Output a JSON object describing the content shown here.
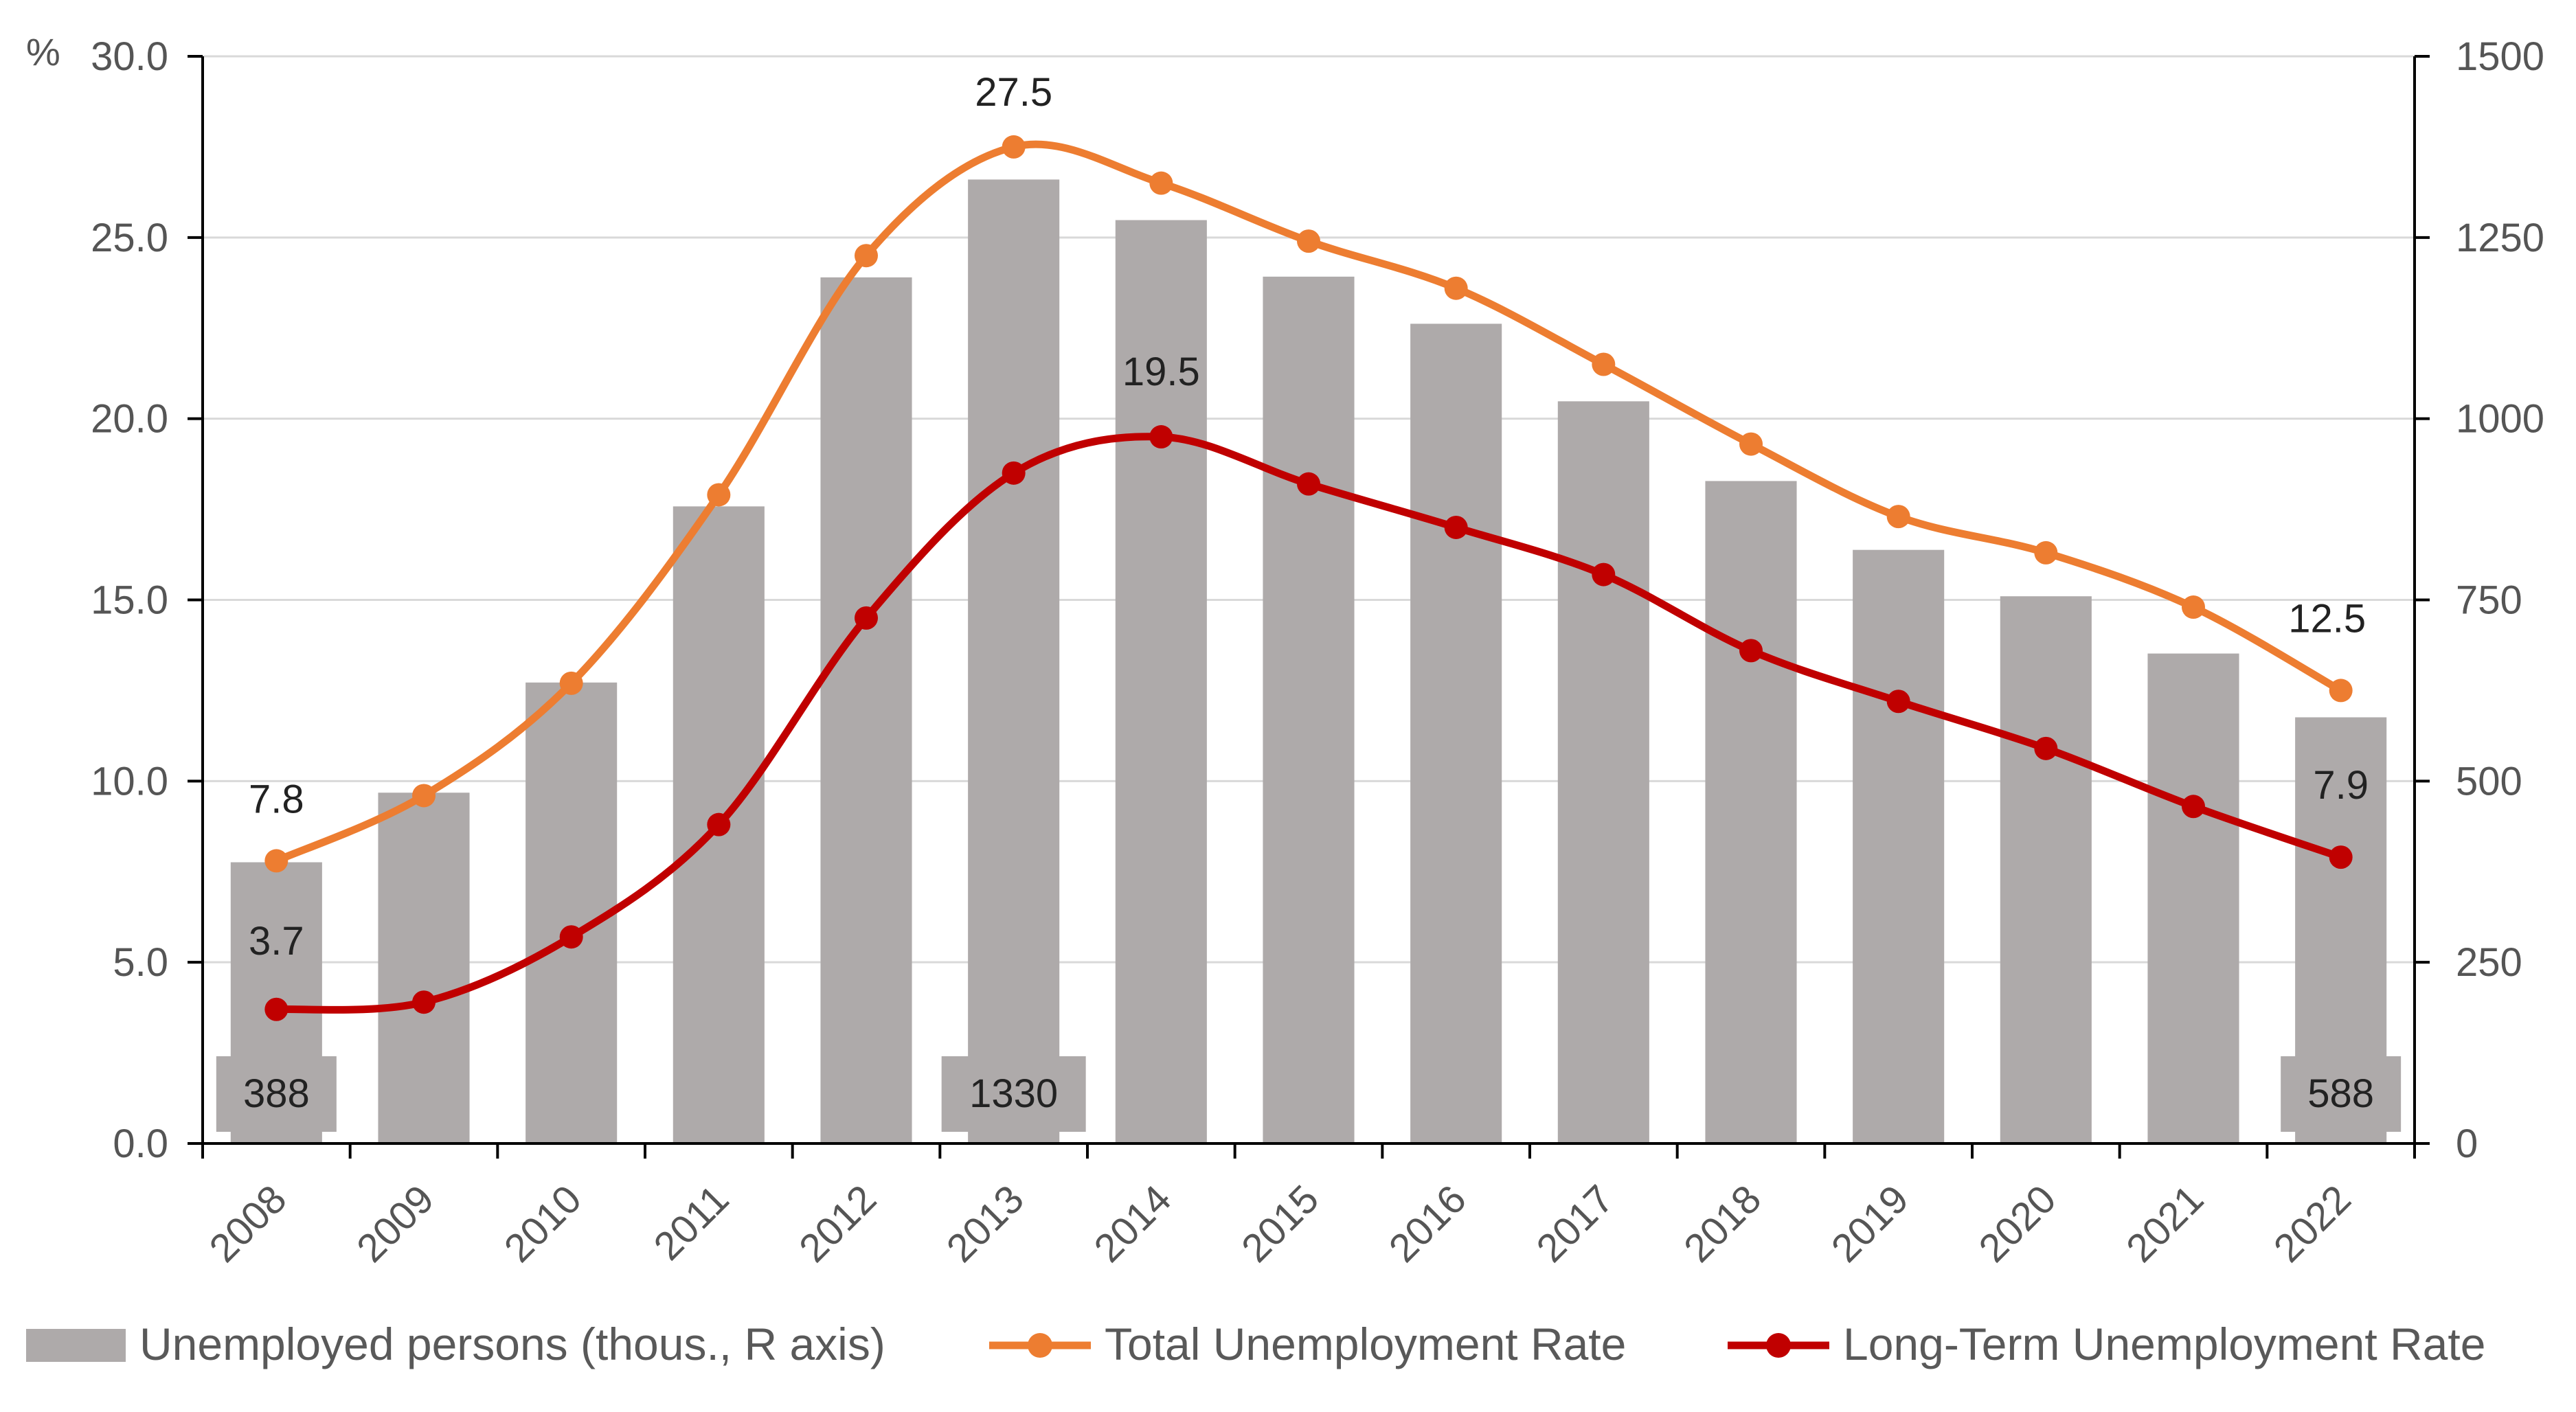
{
  "chart_data": {
    "type": "bar+line",
    "unit_label": "%",
    "categories": [
      "2008",
      "2009",
      "2010",
      "2011",
      "2012",
      "2013",
      "2014",
      "2015",
      "2016",
      "2017",
      "2018",
      "2019",
      "2020",
      "2021",
      "2022"
    ],
    "left_axis": {
      "min": 0,
      "max": 30,
      "step": 5,
      "ticks": [
        "0.0",
        "5.0",
        "10.0",
        "15.0",
        "20.0",
        "25.0",
        "30.0"
      ]
    },
    "right_axis": {
      "min": 0,
      "max": 1500,
      "step": 250,
      "ticks": [
        "0",
        "250",
        "500",
        "750",
        "1000",
        "1250",
        "1500"
      ]
    },
    "series": [
      {
        "name": "Unemployed persons (thous., R axis)",
        "type": "bar",
        "axis": "right",
        "color": "#aeaaaa",
        "values": [
          388,
          484,
          636,
          879,
          1195,
          1330,
          1274,
          1196,
          1131,
          1024,
          914,
          819,
          755,
          676,
          588
        ],
        "labels": [
          {
            "index": 0,
            "text": "388"
          },
          {
            "index": 5,
            "text": "1330"
          },
          {
            "index": 14,
            "text": "588"
          }
        ]
      },
      {
        "name": "Total Unemployment Rate",
        "type": "line",
        "axis": "left",
        "color": "#ed7d31",
        "values": [
          7.8,
          9.6,
          12.7,
          17.9,
          24.5,
          27.5,
          26.5,
          24.9,
          23.6,
          21.5,
          19.3,
          17.3,
          16.3,
          14.8,
          12.5
        ],
        "labels": [
          {
            "index": 0,
            "text": "7.8"
          },
          {
            "index": 5,
            "text": "27.5"
          },
          {
            "index": 14,
            "text": "12.5"
          }
        ]
      },
      {
        "name": "Long-Term Unemployment Rate",
        "type": "line",
        "axis": "left",
        "color": "#c00000",
        "values": [
          3.7,
          3.9,
          5.7,
          8.8,
          14.5,
          18.5,
          19.5,
          18.2,
          17.0,
          15.7,
          13.6,
          12.2,
          10.9,
          9.3,
          7.9
        ],
        "labels": [
          {
            "index": 0,
            "text": "3.7"
          },
          {
            "index": 6,
            "text": "19.5"
          },
          {
            "index": 14,
            "text": "7.9"
          }
        ]
      }
    ],
    "legend": [
      {
        "label": "Unemployed persons (thous., R axis)",
        "kind": "bar",
        "color": "#aeaaaa"
      },
      {
        "label": "Total Unemployment Rate",
        "kind": "line",
        "color": "#ed7d31"
      },
      {
        "label": "Long-Term Unemployment Rate",
        "kind": "line",
        "color": "#c00000"
      }
    ],
    "gridlines": true,
    "legend_position": "bottom"
  }
}
